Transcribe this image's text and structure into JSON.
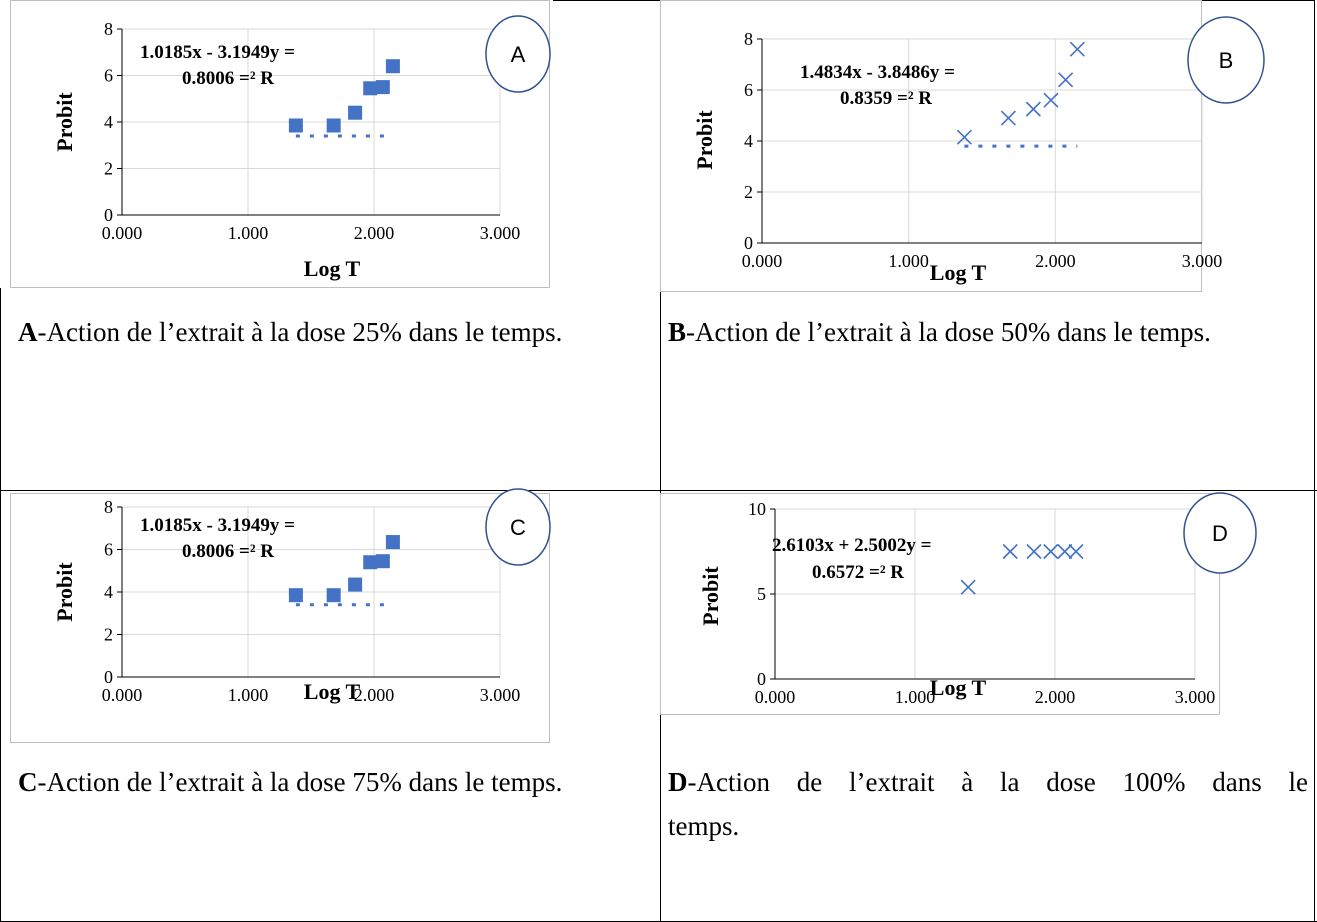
{
  "figure": {
    "colors": {
      "series": "#4472c4",
      "grid": "#d9d9d9",
      "frame": "#bfbfbf",
      "marker_circle": "#2f528f",
      "text": "#000000"
    },
    "panels": [
      {
        "caption_letter": "A",
        "caption_text": "-Action de l’extrait à la dose 25% dans le temps.",
        "caption_line2": ""
      },
      {
        "caption_letter": "B",
        "caption_text": "-Action de l’extrait à la dose 50% dans le temps.",
        "caption_line2": ""
      },
      {
        "caption_letter": "C",
        "caption_text": "-Action de l’extrait à la dose 75% dans le temps.",
        "caption_line2": ""
      },
      {
        "caption_letter": "D",
        "caption_text": "-Action de l’extrait à la dose 100% dans le",
        "caption_line2": "temps."
      }
    ]
  },
  "chart_data": [
    {
      "type": "scatter",
      "panel_label": "A",
      "marker": "square",
      "xlabel": "Log T",
      "ylabel": "Probit",
      "xlim": [
        0,
        3
      ],
      "ylim": [
        0,
        8
      ],
      "xticks": [
        "0.000",
        "1.000",
        "2.000",
        "3.000"
      ],
      "yticks": [
        "0",
        "2",
        "4",
        "6",
        "8"
      ],
      "x": [
        1.38,
        1.68,
        1.85,
        1.97,
        2.07,
        2.15
      ],
      "y": [
        3.85,
        3.85,
        4.4,
        5.45,
        5.5,
        6.4
      ],
      "trendline": {
        "x": [
          1.38,
          2.15
        ],
        "y": [
          3.4,
          3.4
        ],
        "style": "dotted"
      },
      "equation_line1": "1.0185x - 3.1949y =",
      "equation_line2": "0.8006 =² R",
      "grid": true
    },
    {
      "type": "scatter",
      "panel_label": "B",
      "marker": "x",
      "xlabel": "Log T",
      "ylabel": "Probit",
      "xlim": [
        0,
        3
      ],
      "ylim": [
        0,
        8
      ],
      "xticks": [
        "0.000",
        "1.000",
        "2.000",
        "3.000"
      ],
      "yticks": [
        "0",
        "2",
        "4",
        "6",
        "8"
      ],
      "x": [
        1.38,
        1.68,
        1.85,
        1.97,
        2.07,
        2.15
      ],
      "y": [
        4.15,
        4.9,
        5.25,
        5.6,
        6.4,
        7.6
      ],
      "trendline": {
        "x": [
          1.38,
          2.15
        ],
        "y": [
          3.8,
          3.8
        ],
        "style": "dotted"
      },
      "equation_line1": "1.4834x - 3.8486y =",
      "equation_line2": "0.8359 =² R",
      "grid": true
    },
    {
      "type": "scatter",
      "panel_label": "C",
      "marker": "square",
      "xlabel": "Log T",
      "ylabel": "Probit",
      "xlim": [
        0,
        3
      ],
      "ylim": [
        0,
        8
      ],
      "xticks": [
        "0.000",
        "1.000",
        "2.000",
        "3.000"
      ],
      "yticks": [
        "0",
        "2",
        "4",
        "6",
        "8"
      ],
      "x": [
        1.38,
        1.68,
        1.85,
        1.97,
        2.07,
        2.15
      ],
      "y": [
        3.85,
        3.85,
        4.35,
        5.4,
        5.45,
        6.35
      ],
      "trendline": {
        "x": [
          1.38,
          2.15
        ],
        "y": [
          3.4,
          3.4
        ],
        "style": "dotted"
      },
      "equation_line1": "1.0185x - 3.1949y =",
      "equation_line2": "0.8006 =² R",
      "grid": true
    },
    {
      "type": "scatter",
      "panel_label": "D",
      "marker": "x",
      "xlabel": "Log T",
      "ylabel": "Probit",
      "xlim": [
        0,
        3
      ],
      "ylim": [
        0,
        10
      ],
      "xticks": [
        "0.000",
        "1.000",
        "2.000",
        "3.000"
      ],
      "yticks": [
        "0",
        "5",
        "10"
      ],
      "x": [
        1.38,
        1.68,
        1.85,
        1.97,
        2.07,
        2.15
      ],
      "y": [
        5.4,
        7.5,
        7.5,
        7.5,
        7.5,
        7.5
      ],
      "trendline": null,
      "equation_line1": "2.6103x + 2.5002y =",
      "equation_line2": "0.6572 =² R",
      "grid": true
    }
  ]
}
